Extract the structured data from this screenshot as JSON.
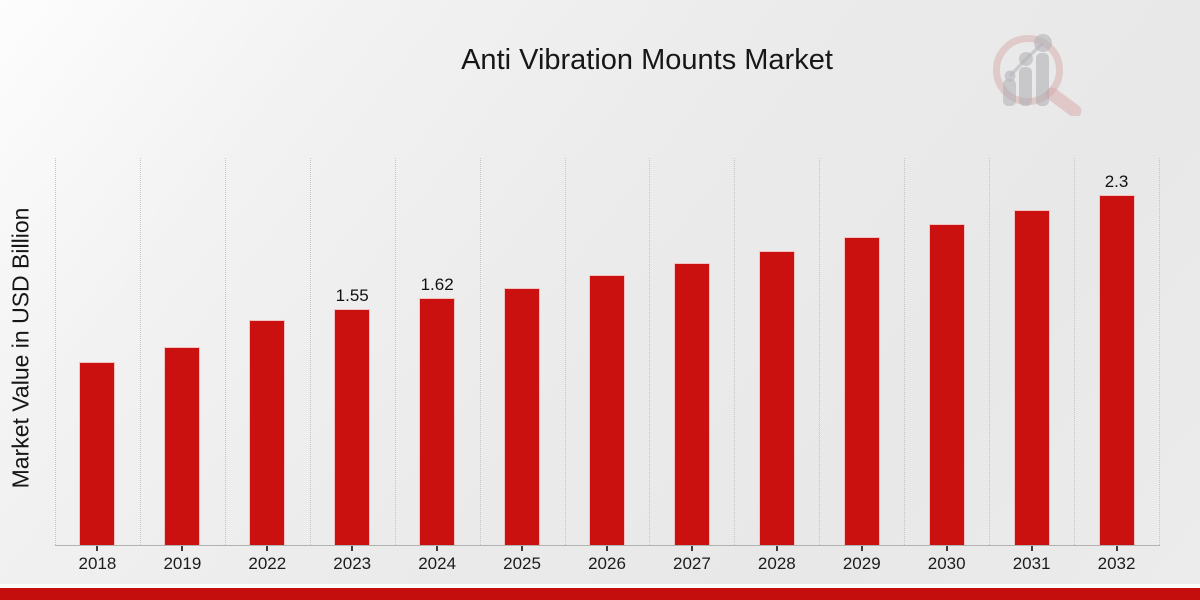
{
  "chart_data": {
    "type": "bar",
    "title": "Anti Vibration Mounts Market",
    "xlabel": "",
    "ylabel": "Market Value in USD Billion",
    "categories": [
      "2018",
      "2019",
      "2022",
      "2023",
      "2024",
      "2025",
      "2026",
      "2027",
      "2028",
      "2029",
      "2030",
      "2031",
      "2032"
    ],
    "values": [
      1.2,
      1.3,
      1.48,
      1.55,
      1.62,
      1.69,
      1.77,
      1.85,
      1.93,
      2.02,
      2.11,
      2.2,
      2.3
    ],
    "data_labels": {
      "2023": "1.55",
      "2024": "1.62",
      "2032": "2.3"
    },
    "ylim": [
      0,
      2.54
    ],
    "grid": "vertical-dotted",
    "legend_position": "none",
    "bar_color": "#cb1010"
  },
  "footer": {
    "banner_color": "#c40e0e"
  },
  "branding": {
    "logo_name": "magnifier-growth-chart-watermark"
  }
}
